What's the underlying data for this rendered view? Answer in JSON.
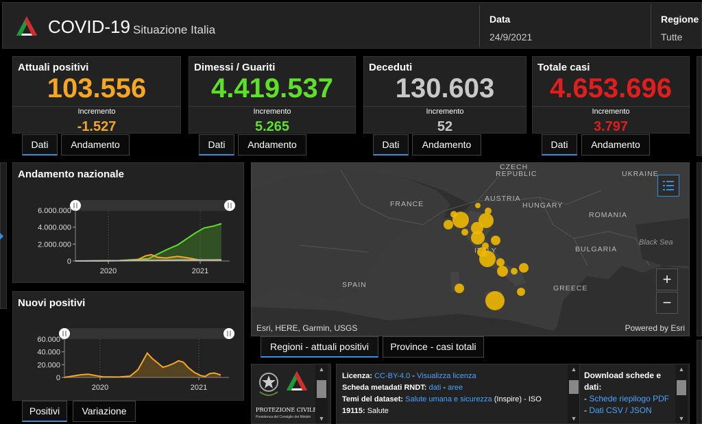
{
  "header": {
    "title": "COVID-19",
    "subtitle": "Situazione Italia",
    "date_label": "Data",
    "date_value": "24/9/2021",
    "region_label": "Regione",
    "region_value": "Tutte"
  },
  "stats": [
    {
      "title": "Attuali positivi",
      "value": "103.556",
      "inc_label": "Incremento",
      "increment": "-1.527",
      "color": "#f5a623",
      "inc_color": "#f5a623"
    },
    {
      "title": "Dimessi / Guariti",
      "value": "4.419.537",
      "inc_label": "Incremento",
      "increment": "5.265",
      "color": "#5ee02a",
      "inc_color": "#5ee02a"
    },
    {
      "title": "Deceduti",
      "value": "130.603",
      "inc_label": "Incremento",
      "increment": "52",
      "color": "#c8c8c8",
      "inc_color": "#c8c8c8"
    },
    {
      "title": "Totale casi",
      "value": "4.653.696",
      "inc_label": "Incremento",
      "increment": "3.797",
      "color": "#e01e1e",
      "inc_color": "#e01e1e"
    }
  ],
  "stat_tabs": {
    "dati": "Dati",
    "andamento": "Andamento"
  },
  "chart_data": [
    {
      "type": "area",
      "title": "Andamento nazionale",
      "x_ticks": [
        "2020",
        "2021"
      ],
      "y_ticks": [
        "6.000.000",
        "4.000.000",
        "2.000.000",
        "0"
      ],
      "ylim": [
        0,
        6000000
      ],
      "series": [
        {
          "name": "Dimessi / Guariti",
          "color": "#5ee02a",
          "points": [
            [
              0,
              0
            ],
            [
              0.15,
              0
            ],
            [
              0.3,
              50000
            ],
            [
              0.42,
              180000
            ],
            [
              0.5,
              260000
            ],
            [
              0.55,
              700000
            ],
            [
              0.62,
              1300000
            ],
            [
              0.7,
              1900000
            ],
            [
              0.76,
              2600000
            ],
            [
              0.82,
              3300000
            ],
            [
              0.88,
              3900000
            ],
            [
              0.95,
              4150000
            ],
            [
              1.0,
              4419537
            ]
          ]
        },
        {
          "name": "Attuali positivi",
          "color": "#f5a623",
          "points": [
            [
              0,
              0
            ],
            [
              0.15,
              20000
            ],
            [
              0.3,
              40000
            ],
            [
              0.42,
              100000
            ],
            [
              0.48,
              600000
            ],
            [
              0.52,
              750000
            ],
            [
              0.56,
              450000
            ],
            [
              0.62,
              350000
            ],
            [
              0.7,
              550000
            ],
            [
              0.76,
              400000
            ],
            [
              0.84,
              150000
            ],
            [
              0.92,
              100000
            ],
            [
              1.0,
              103556
            ]
          ]
        },
        {
          "name": "Deceduti",
          "color": "#bbbbbb",
          "points": [
            [
              0,
              0
            ],
            [
              0.3,
              30000
            ],
            [
              0.5,
              60000
            ],
            [
              0.7,
              100000
            ],
            [
              1.0,
              130603
            ]
          ]
        }
      ]
    },
    {
      "type": "area",
      "title": "Nuovi positivi",
      "x_ticks": [
        "2020",
        "2021"
      ],
      "y_ticks": [
        "60.000",
        "40.000",
        "20.000",
        "0"
      ],
      "ylim": [
        0,
        60000
      ],
      "series": [
        {
          "name": "Nuovi positivi",
          "color": "#f5a623",
          "points": [
            [
              0,
              0
            ],
            [
              0.1,
              4000
            ],
            [
              0.15,
              5000
            ],
            [
              0.25,
              800
            ],
            [
              0.35,
              600
            ],
            [
              0.42,
              2000
            ],
            [
              0.47,
              12000
            ],
            [
              0.5,
              25000
            ],
            [
              0.53,
              38000
            ],
            [
              0.56,
              30000
            ],
            [
              0.6,
              22000
            ],
            [
              0.63,
              16000
            ],
            [
              0.66,
              18000
            ],
            [
              0.7,
              22000
            ],
            [
              0.73,
              26000
            ],
            [
              0.76,
              24000
            ],
            [
              0.79,
              16000
            ],
            [
              0.83,
              8000
            ],
            [
              0.87,
              3000
            ],
            [
              0.9,
              1500
            ],
            [
              0.93,
              6000
            ],
            [
              0.96,
              7000
            ],
            [
              1.0,
              3797
            ]
          ]
        }
      ]
    }
  ],
  "chart_tabs": {
    "positivi": "Positivi",
    "variazione": "Variazione"
  },
  "map": {
    "countries": [
      "CZECH",
      "REPUBLIC",
      "UKRAINE",
      "FRANCE",
      "AUSTRIA",
      "HUNGARY",
      "ROMANIA",
      "BULGARIA",
      "ITALY",
      "SPAIN",
      "GREECE"
    ],
    "seas": [
      "Black Sea"
    ],
    "attribution": "Esri, HERE, Garmin, USGS",
    "powered": "Powered by Esri"
  },
  "map_tabs": {
    "regioni": "Regioni - attuali positivi",
    "province": "Province - casi totali"
  },
  "license": {
    "licenza_label": "Licenza:",
    "licenza_value": "CC-BY-4.0",
    "licenza_sep": " - ",
    "licenza_link": "Visualizza licenza",
    "scheda_label": "Scheda metadati RNDT:",
    "scheda_dati": "dati",
    "scheda_sep": " - ",
    "scheda_aree": "aree",
    "temi_label": "Temi del dataset:",
    "temi_link": "Salute umana e sicurezza",
    "temi_tail": " (Inspire) - ISO",
    "temi_code": "19115:",
    "temi_value": " Salute"
  },
  "downloads": {
    "title": "Download schede e dati:",
    "item1": "Schede riepilogo PDF",
    "item2": "Dati CSV / JSON",
    "bullet": "- "
  },
  "logos": {
    "protezione": "PROTEZIONE CIVILE",
    "presidenza": "Presidenza del Consiglio dei Ministri"
  }
}
